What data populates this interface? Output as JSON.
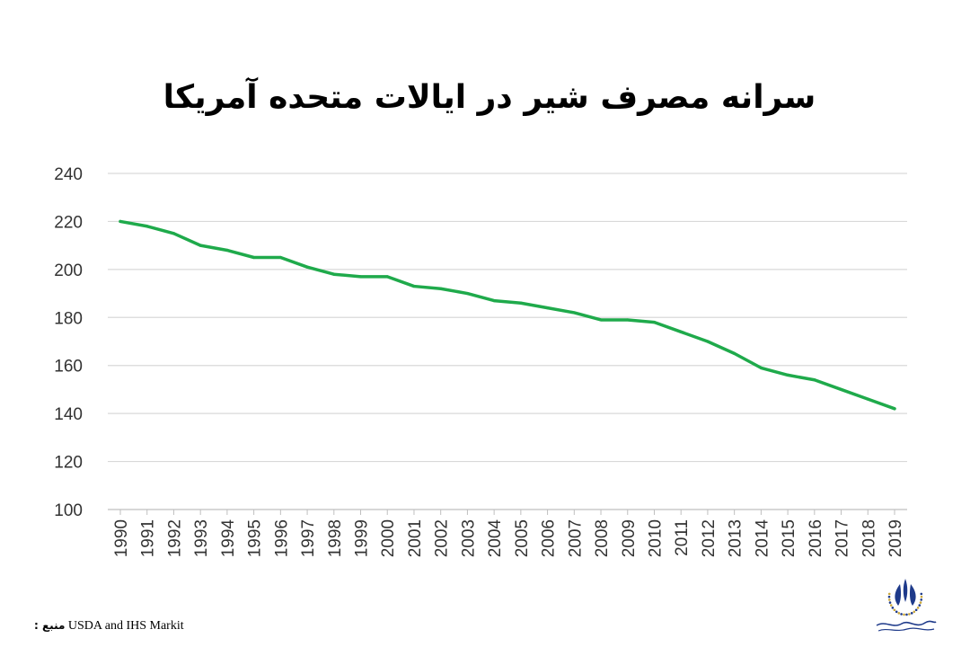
{
  "chart_data": {
    "type": "line",
    "title": "سرانه مصرف شیر در ایالات متحده آمریکا",
    "xlabel": "",
    "ylabel": "",
    "x": [
      "1990",
      "1991",
      "1992",
      "1993",
      "1994",
      "1995",
      "1996",
      "1997",
      "1998",
      "1999",
      "2000",
      "2001",
      "2002",
      "2003",
      "2004",
      "2005",
      "2006",
      "2007",
      "2008",
      "2009",
      "2010",
      "2011",
      "2012",
      "2013",
      "2014",
      "2015",
      "2016",
      "2017",
      "2018",
      "2019"
    ],
    "series": [
      {
        "values": [
          220,
          218,
          215,
          210,
          208,
          205,
          205,
          201,
          198,
          197,
          197,
          193,
          192,
          190,
          187,
          186,
          184,
          182,
          179,
          179,
          178,
          174,
          170,
          165,
          159,
          156,
          154,
          150,
          146,
          142
        ],
        "color": "#1faa4b"
      }
    ],
    "yticks": [
      100,
      120,
      140,
      160,
      180,
      200,
      220,
      240
    ],
    "ylim": [
      100,
      240
    ],
    "grid": true,
    "legend": "none"
  },
  "source": {
    "label": "منبع :",
    "text": "USDA and IHS Markit"
  },
  "logo": {
    "icon": "association-logo-icon"
  },
  "colors": {
    "line": "#1faa4b",
    "grid": "#d9d9d9",
    "logo": "#1e3a8a"
  }
}
